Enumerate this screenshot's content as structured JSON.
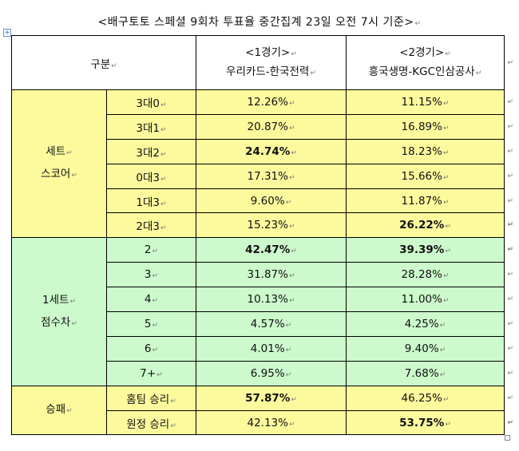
{
  "title": "<배구토토 스페셜 9회차 투표율 중간집계 23일 오전 7시 기준>",
  "return_mark": "↵",
  "anchor_icon": "+",
  "header": {
    "group_label": "구분",
    "col1_game": "<1경기>",
    "col1_teams": "우리카드-한국전력",
    "col2_game": "<2경기>",
    "col2_teams": "흥국생명-KGC인삼공사"
  },
  "sections": [
    {
      "label_lines": [
        "세트",
        "스코어"
      ],
      "color": "#fdfa9d",
      "rows": [
        {
          "label": "3대0",
          "v1": "12.26%",
          "v2": "11.15%"
        },
        {
          "label": "3대1",
          "v1": "20.87%",
          "v2": "16.89%"
        },
        {
          "label": "3대2",
          "v1": "24.74%",
          "v2": "18.23%"
        },
        {
          "label": "0대3",
          "v1": "17.31%",
          "v2": "15.66%"
        },
        {
          "label": "1대3",
          "v1": "9.60%",
          "v2": "11.87%"
        },
        {
          "label": "2대3",
          "v1": "15.23%",
          "v2": "26.22%"
        }
      ]
    },
    {
      "label_lines": [
        "1세트",
        "점수차"
      ],
      "color": "#ccfacc",
      "rows": [
        {
          "label": "2",
          "v1": "42.47%",
          "v2": "39.39%"
        },
        {
          "label": "3",
          "v1": "31.87%",
          "v2": "28.28%"
        },
        {
          "label": "4",
          "v1": "10.13%",
          "v2": "11.00%"
        },
        {
          "label": "5",
          "v1": "4.57%",
          "v2": "4.25%"
        },
        {
          "label": "6",
          "v1": "4.01%",
          "v2": "9.40%"
        },
        {
          "label": "7+",
          "v1": "6.95%",
          "v2": "7.68%"
        }
      ]
    },
    {
      "label_lines": [
        "승패"
      ],
      "color": "#fdfa9d",
      "rows": [
        {
          "label": "홈팀 승리",
          "v1": "57.87%",
          "v2": "46.25%"
        },
        {
          "label": "원정 승리",
          "v1": "42.13%",
          "v2": "53.75%"
        }
      ]
    }
  ]
}
